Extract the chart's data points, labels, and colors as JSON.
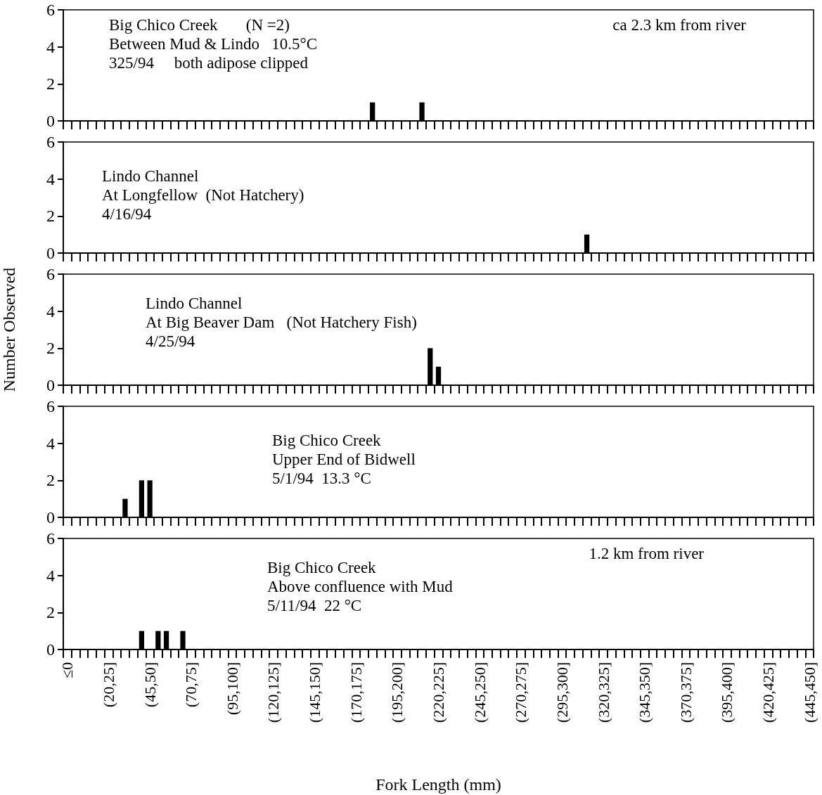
{
  "chart_data": [
    {
      "type": "bar",
      "color": "#000000",
      "tick_labels": "y",
      "ylim": [
        0,
        6
      ],
      "yticks": [
        0,
        2,
        4,
        6
      ],
      "categories": [
        null,
        null,
        null,
        null,
        null,
        null,
        null,
        null,
        null,
        null,
        null,
        null,
        null,
        null,
        null,
        null,
        null,
        null,
        null,
        null,
        null,
        null,
        null,
        null,
        null,
        null,
        null,
        null,
        null,
        null,
        null,
        null,
        null,
        null,
        null,
        null,
        null,
        null,
        null,
        null,
        null,
        null,
        null,
        null,
        null,
        null,
        null,
        null,
        null,
        null,
        null,
        null,
        null,
        null,
        null,
        null,
        null,
        null,
        null,
        null,
        null,
        null,
        null,
        null,
        null,
        null,
        null,
        null,
        null,
        null,
        null,
        null,
        null,
        null,
        null,
        null,
        null,
        null,
        null,
        null,
        null,
        null,
        null,
        null,
        null,
        null,
        null,
        null,
        null,
        null,
        null
      ],
      "values": [
        0,
        0,
        0,
        0,
        0,
        0,
        0,
        0,
        0,
        0,
        0,
        0,
        0,
        0,
        0,
        0,
        0,
        0,
        0,
        0,
        0,
        0,
        0,
        0,
        0,
        0,
        0,
        0,
        0,
        0,
        0,
        0,
        0,
        0,
        0,
        0,
        0,
        1,
        0,
        0,
        0,
        0,
        0,
        1,
        0,
        0,
        0,
        0,
        0,
        0,
        0,
        0,
        0,
        0,
        0,
        0,
        0,
        0,
        0,
        0,
        0,
        0,
        0,
        0,
        0,
        0,
        0,
        0,
        0,
        0,
        0,
        0,
        0,
        0,
        0,
        0,
        0,
        0,
        0,
        0,
        0,
        0,
        0,
        0,
        0,
        0,
        0,
        0,
        0,
        0,
        0
      ],
      "annotations": [
        "Big Chico Creek       (N =2)\nBetween Mud & Lindo   10.5°C\n325/94     both adipose clipped",
        "ca 2.3 km from river"
      ]
    },
    {
      "type": "bar",
      "color": "#000000",
      "tick_labels": "y",
      "ylim": [
        0,
        6
      ],
      "yticks": [
        0,
        2,
        4,
        6
      ],
      "categories": [
        null,
        null,
        null,
        null,
        null,
        null,
        null,
        null,
        null,
        null,
        null,
        null,
        null,
        null,
        null,
        null,
        null,
        null,
        null,
        null,
        null,
        null,
        null,
        null,
        null,
        null,
        null,
        null,
        null,
        null,
        null,
        null,
        null,
        null,
        null,
        null,
        null,
        null,
        null,
        null,
        null,
        null,
        null,
        null,
        null,
        null,
        null,
        null,
        null,
        null,
        null,
        null,
        null,
        null,
        null,
        null,
        null,
        null,
        null,
        null,
        null,
        null,
        null,
        null,
        null,
        null,
        null,
        null,
        null,
        null,
        null,
        null,
        null,
        null,
        null,
        null,
        null,
        null,
        null,
        null,
        null,
        null,
        null,
        null,
        null,
        null,
        null,
        null,
        null,
        null,
        null
      ],
      "values": [
        0,
        0,
        0,
        0,
        0,
        0,
        0,
        0,
        0,
        0,
        0,
        0,
        0,
        0,
        0,
        0,
        0,
        0,
        0,
        0,
        0,
        0,
        0,
        0,
        0,
        0,
        0,
        0,
        0,
        0,
        0,
        0,
        0,
        0,
        0,
        0,
        0,
        0,
        0,
        0,
        0,
        0,
        0,
        0,
        0,
        0,
        0,
        0,
        0,
        0,
        0,
        0,
        0,
        0,
        0,
        0,
        0,
        0,
        0,
        0,
        0,
        0,
        0,
        1,
        0,
        0,
        0,
        0,
        0,
        0,
        0,
        0,
        0,
        0,
        0,
        0,
        0,
        0,
        0,
        0,
        0,
        0,
        0,
        0,
        0,
        0,
        0,
        0,
        0,
        0,
        0
      ],
      "annotations": [
        "Lindo Channel\nAt Longfellow  (Not Hatchery)\n4/16/94"
      ]
    },
    {
      "type": "bar",
      "color": "#000000",
      "tick_labels": "y",
      "ylim": [
        0,
        6
      ],
      "yticks": [
        0,
        2,
        4,
        6
      ],
      "ylabel": "Number Observed",
      "categories": [
        null,
        null,
        null,
        null,
        null,
        null,
        null,
        null,
        null,
        null,
        null,
        null,
        null,
        null,
        null,
        null,
        null,
        null,
        null,
        null,
        null,
        null,
        null,
        null,
        null,
        null,
        null,
        null,
        null,
        null,
        null,
        null,
        null,
        null,
        null,
        null,
        null,
        null,
        null,
        null,
        null,
        null,
        null,
        null,
        null,
        null,
        null,
        null,
        null,
        null,
        null,
        null,
        null,
        null,
        null,
        null,
        null,
        null,
        null,
        null,
        null,
        null,
        null,
        null,
        null,
        null,
        null,
        null,
        null,
        null,
        null,
        null,
        null,
        null,
        null,
        null,
        null,
        null,
        null,
        null,
        null,
        null,
        null,
        null,
        null,
        null,
        null,
        null,
        null,
        null,
        null
      ],
      "values": [
        0,
        0,
        0,
        0,
        0,
        0,
        0,
        0,
        0,
        0,
        0,
        0,
        0,
        0,
        0,
        0,
        0,
        0,
        0,
        0,
        0,
        0,
        0,
        0,
        0,
        0,
        0,
        0,
        0,
        0,
        0,
        0,
        0,
        0,
        0,
        0,
        0,
        0,
        0,
        0,
        0,
        0,
        0,
        0,
        2,
        1,
        0,
        0,
        0,
        0,
        0,
        0,
        0,
        0,
        0,
        0,
        0,
        0,
        0,
        0,
        0,
        0,
        0,
        0,
        0,
        0,
        0,
        0,
        0,
        0,
        0,
        0,
        0,
        0,
        0,
        0,
        0,
        0,
        0,
        0,
        0,
        0,
        0,
        0,
        0,
        0,
        0,
        0,
        0,
        0,
        0
      ],
      "annotations": [
        "Lindo Channel\nAt Big Beaver Dam   (Not Hatchery Fish)\n4/25/94"
      ]
    },
    {
      "type": "bar",
      "color": "#000000",
      "tick_labels": "y",
      "ylim": [
        0,
        6
      ],
      "yticks": [
        0,
        2,
        4,
        6
      ],
      "categories": [
        null,
        null,
        null,
        null,
        null,
        null,
        null,
        null,
        null,
        null,
        null,
        null,
        null,
        null,
        null,
        null,
        null,
        null,
        null,
        null,
        null,
        null,
        null,
        null,
        null,
        null,
        null,
        null,
        null,
        null,
        null,
        null,
        null,
        null,
        null,
        null,
        null,
        null,
        null,
        null,
        null,
        null,
        null,
        null,
        null,
        null,
        null,
        null,
        null,
        null,
        null,
        null,
        null,
        null,
        null,
        null,
        null,
        null,
        null,
        null,
        null,
        null,
        null,
        null,
        null,
        null,
        null,
        null,
        null,
        null,
        null,
        null,
        null,
        null,
        null,
        null,
        null,
        null,
        null,
        null,
        null,
        null,
        null,
        null,
        null,
        null,
        null,
        null,
        null,
        null,
        null
      ],
      "values": [
        0,
        0,
        0,
        0,
        0,
        0,
        0,
        1,
        0,
        2,
        2,
        0,
        0,
        0,
        0,
        0,
        0,
        0,
        0,
        0,
        0,
        0,
        0,
        0,
        0,
        0,
        0,
        0,
        0,
        0,
        0,
        0,
        0,
        0,
        0,
        0,
        0,
        0,
        0,
        0,
        0,
        0,
        0,
        0,
        0,
        0,
        0,
        0,
        0,
        0,
        0,
        0,
        0,
        0,
        0,
        0,
        0,
        0,
        0,
        0,
        0,
        0,
        0,
        0,
        0,
        0,
        0,
        0,
        0,
        0,
        0,
        0,
        0,
        0,
        0,
        0,
        0,
        0,
        0,
        0,
        0,
        0,
        0,
        0,
        0,
        0,
        0,
        0,
        0,
        0,
        0
      ],
      "annotations": [
        "Big Chico Creek\nUpper End of Bidwell\n5/1/94  13.3 °C"
      ]
    },
    {
      "type": "bar",
      "color": "#000000",
      "ylim": [
        0,
        6
      ],
      "yticks": [
        0,
        2,
        4,
        6
      ],
      "xlabel": "Fork Length (mm)",
      "categories": [
        "≤0",
        null,
        null,
        null,
        null,
        "(20,25]",
        null,
        null,
        null,
        null,
        "(45,50]",
        null,
        null,
        null,
        null,
        "(70,75]",
        null,
        null,
        null,
        null,
        "(95,100]",
        null,
        null,
        null,
        null,
        "(120,125]",
        null,
        null,
        null,
        null,
        "(145,150]",
        null,
        null,
        null,
        null,
        "(170,175]",
        null,
        null,
        null,
        null,
        "(195,200]",
        null,
        null,
        null,
        null,
        "(220,225]",
        null,
        null,
        null,
        null,
        "(245,250]",
        null,
        null,
        null,
        null,
        "(270,275]",
        null,
        null,
        null,
        null,
        "(295,300]",
        null,
        null,
        null,
        null,
        "(320,325]",
        null,
        null,
        null,
        null,
        "(345,350]",
        null,
        null,
        null,
        null,
        "(370,375]",
        null,
        null,
        null,
        null,
        "(395,400]",
        null,
        null,
        null,
        null,
        "(420,425]",
        null,
        null,
        null,
        null,
        "(445,450]"
      ],
      "values": [
        0,
        0,
        0,
        0,
        0,
        0,
        0,
        0,
        0,
        1,
        0,
        1,
        1,
        0,
        1,
        0,
        0,
        0,
        0,
        0,
        0,
        0,
        0,
        0,
        0,
        0,
        0,
        0,
        0,
        0,
        0,
        0,
        0,
        0,
        0,
        0,
        0,
        0,
        0,
        0,
        0,
        0,
        0,
        0,
        0,
        0,
        0,
        0,
        0,
        0,
        0,
        0,
        0,
        0,
        0,
        0,
        0,
        0,
        0,
        0,
        0,
        0,
        0,
        0,
        0,
        0,
        0,
        0,
        0,
        0,
        0,
        0,
        0,
        0,
        0,
        0,
        0,
        0,
        0,
        0,
        0,
        0,
        0,
        0,
        0,
        0,
        0,
        0,
        0,
        0,
        0
      ],
      "annotations": [
        "Big Chico Creek\nAbove confluence with Mud\n5/11/94  22 °C",
        "1.2 km from river"
      ]
    }
  ]
}
